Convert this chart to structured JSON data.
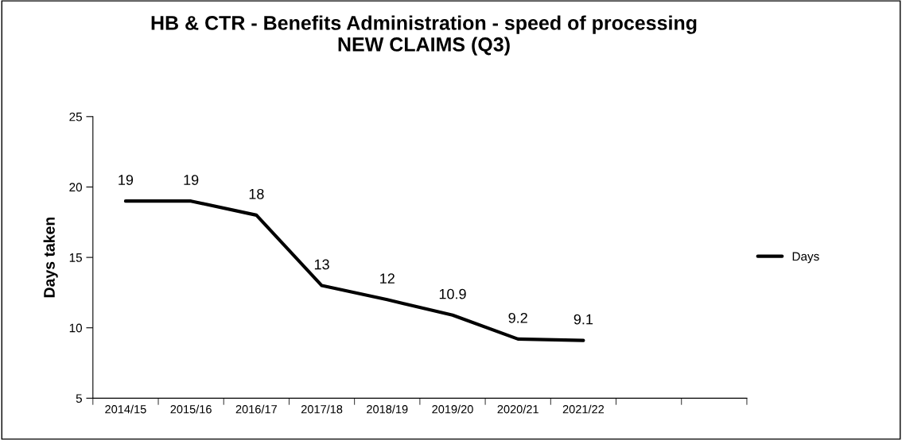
{
  "chart_data": {
    "type": "line",
    "title": "HB & CTR - Benefits Administration - speed of processing\nNEW CLAIMS (Q3)",
    "ylabel": "Days taken",
    "categories": [
      "2014/15",
      "2015/16",
      "2016/17",
      "2017/18",
      "2018/19",
      "2019/20",
      "2020/21",
      "2021/22",
      null,
      null
    ],
    "series": [
      {
        "name": "Days",
        "color": "#000000",
        "values": [
          19,
          19,
          18,
          13,
          12,
          10.9,
          9.2,
          9.1,
          null,
          null
        ]
      }
    ],
    "ylim": [
      5,
      25
    ],
    "yticks": [
      5,
      10,
      15,
      20,
      25
    ],
    "grid": false,
    "legend": "right",
    "marker": "none",
    "line_style": "solid",
    "data_labels": true
  }
}
